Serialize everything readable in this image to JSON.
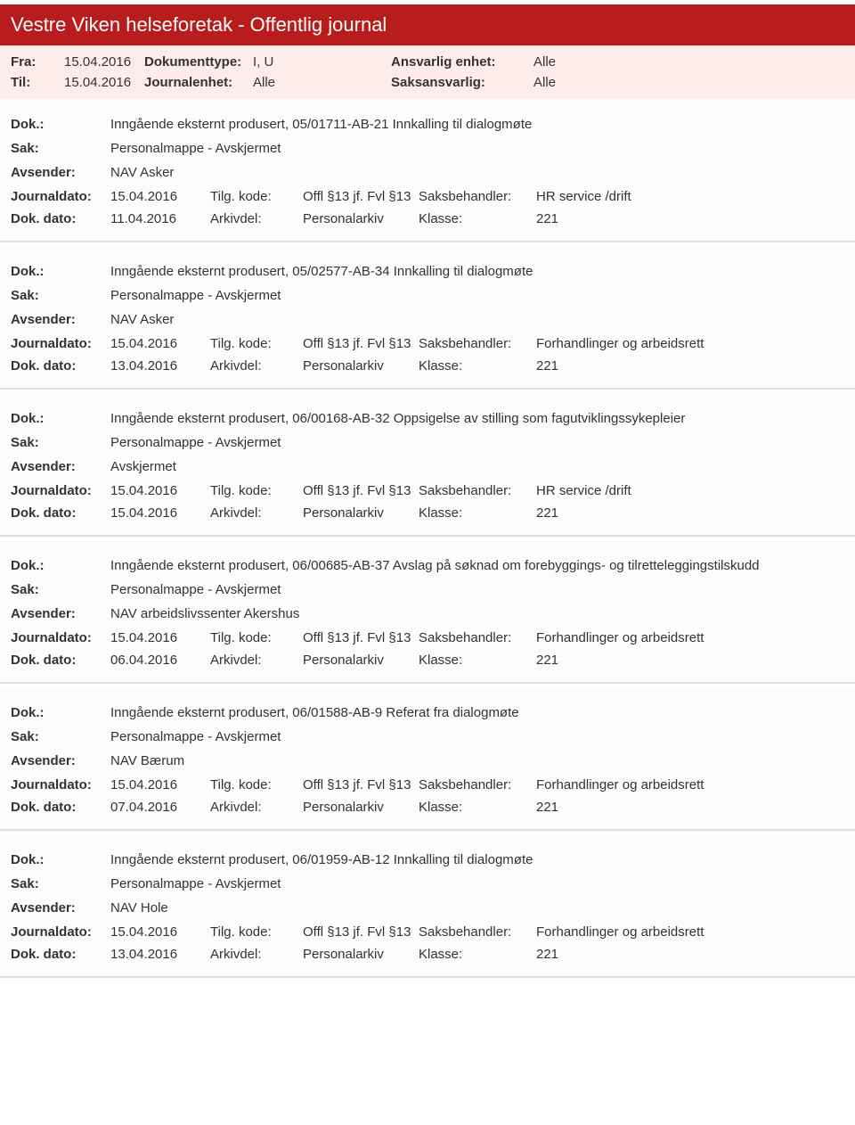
{
  "header": {
    "title": "Vestre Viken helseforetak - Offentlig journal"
  },
  "filters": {
    "fra_label": "Fra:",
    "fra_value": "15.04.2016",
    "til_label": "Til:",
    "til_value": "15.04.2016",
    "doktype_label": "Dokumenttype:",
    "doktype_value": "I, U",
    "journalenhet_label": "Journalenhet:",
    "journalenhet_value": "Alle",
    "ansvarlig_label": "Ansvarlig enhet:",
    "ansvarlig_value": "Alle",
    "saksansvarlig_label": "Saksansvarlig:",
    "saksansvarlig_value": "Alle"
  },
  "labels": {
    "dok": "Dok.:",
    "sak": "Sak:",
    "avsender": "Avsender:",
    "journaldato": "Journaldato:",
    "dokdato": "Dok. dato:",
    "tilgkode": "Tilg. kode:",
    "arkivdel": "Arkivdel:",
    "saksbehandler": "Saksbehandler:",
    "klasse": "Klasse:"
  },
  "entries": [
    {
      "dok": "Inngående eksternt produsert, 05/01711-AB-21 Innkalling til dialogmøte",
      "sak": "Personalmappe - Avskjermet",
      "avsender": "NAV Asker",
      "journaldato": "15.04.2016",
      "tilgkode": "Offl §13 jf. Fvl §13",
      "saksbehandler": "HR service /drift",
      "dokdato": "11.04.2016",
      "arkivdel": "Personalarkiv",
      "klasse": "221"
    },
    {
      "dok": "Inngående eksternt produsert, 05/02577-AB-34 Innkalling til dialogmøte",
      "sak": "Personalmappe - Avskjermet",
      "avsender": "NAV Asker",
      "journaldato": "15.04.2016",
      "tilgkode": "Offl §13 jf. Fvl §13",
      "saksbehandler": "Forhandlinger og arbeidsrett",
      "dokdato": "13.04.2016",
      "arkivdel": "Personalarkiv",
      "klasse": "221"
    },
    {
      "dok": "Inngående eksternt produsert, 06/00168-AB-32 Oppsigelse av stilling som fagutviklingssykepleier",
      "sak": "Personalmappe - Avskjermet",
      "avsender": "Avskjermet",
      "journaldato": "15.04.2016",
      "tilgkode": "Offl §13 jf. Fvl §13",
      "saksbehandler": "HR service /drift",
      "dokdato": "15.04.2016",
      "arkivdel": "Personalarkiv",
      "klasse": "221"
    },
    {
      "dok": "Inngående eksternt produsert, 06/00685-AB-37 Avslag på søknad om forebyggings- og tilretteleggingstilskudd",
      "sak": "Personalmappe - Avskjermet",
      "avsender": "NAV arbeidslivssenter Akershus",
      "journaldato": "15.04.2016",
      "tilgkode": "Offl §13 jf. Fvl §13",
      "saksbehandler": "Forhandlinger og arbeidsrett",
      "dokdato": "06.04.2016",
      "arkivdel": "Personalarkiv",
      "klasse": "221"
    },
    {
      "dok": "Inngående eksternt produsert, 06/01588-AB-9 Referat fra dialogmøte",
      "sak": "Personalmappe - Avskjermet",
      "avsender": "NAV Bærum",
      "journaldato": "15.04.2016",
      "tilgkode": "Offl §13 jf. Fvl §13",
      "saksbehandler": "Forhandlinger og arbeidsrett",
      "dokdato": "07.04.2016",
      "arkivdel": "Personalarkiv",
      "klasse": "221"
    },
    {
      "dok": "Inngående eksternt produsert, 06/01959-AB-12 Innkalling til dialogmøte",
      "sak": "Personalmappe - Avskjermet",
      "avsender": "NAV Hole",
      "journaldato": "15.04.2016",
      "tilgkode": "Offl §13 jf. Fvl §13",
      "saksbehandler": "Forhandlinger og arbeidsrett",
      "dokdato": "13.04.2016",
      "arkivdel": "Personalarkiv",
      "klasse": "221"
    }
  ]
}
